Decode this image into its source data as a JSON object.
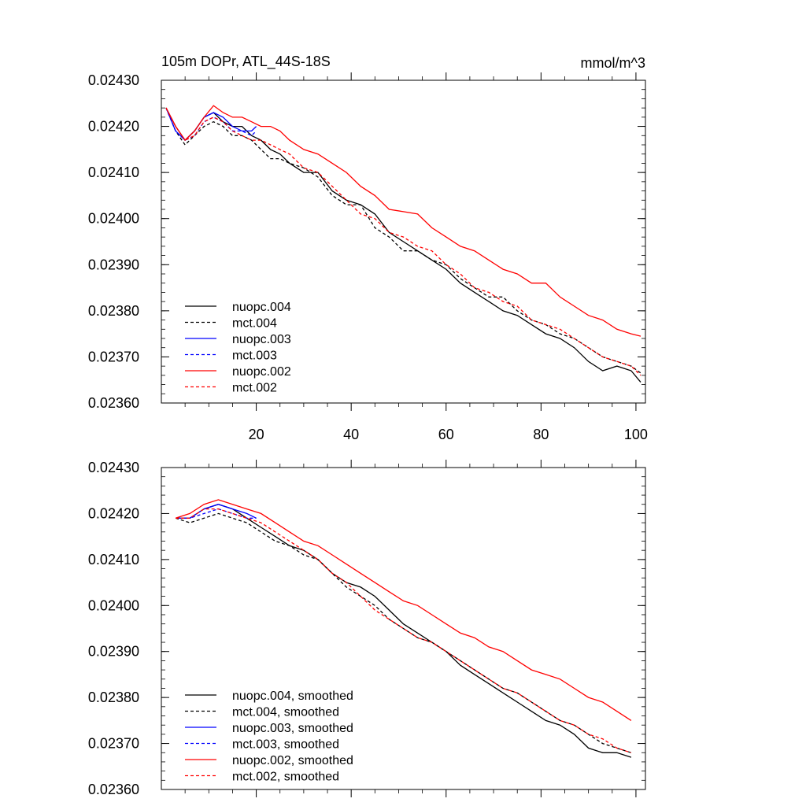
{
  "chart_data": [
    {
      "type": "line",
      "title": "105m DOPr, ATL_44S-18S",
      "units": "mmol/m^3",
      "xlim": [
        0,
        102
      ],
      "ylim": [
        0.0236,
        0.0243
      ],
      "yticks": [
        "0.02430",
        "0.02420",
        "0.02410",
        "0.02400",
        "0.02390",
        "0.02380",
        "0.02370",
        "0.02360"
      ],
      "xticks": [
        "20",
        "40",
        "60",
        "80",
        "100"
      ],
      "legend_position": "bottom-left",
      "series": [
        {
          "name": "nuopc.004",
          "color": "#000000",
          "dash": false,
          "x": [
            1,
            3,
            5,
            7,
            9,
            11,
            13,
            15,
            17,
            19,
            21,
            23,
            25,
            27,
            30,
            33,
            36,
            39,
            42,
            45,
            48,
            51,
            54,
            57,
            60,
            63,
            66,
            69,
            72,
            75,
            78,
            81,
            84,
            87,
            90,
            93,
            96,
            99,
            101
          ],
          "y": [
            0.02424,
            0.0242,
            0.02417,
            0.02419,
            0.02422,
            0.02423,
            0.02421,
            0.0242,
            0.0242,
            0.02418,
            0.02417,
            0.02415,
            0.02414,
            0.02412,
            0.0241,
            0.0241,
            0.02406,
            0.02404,
            0.02403,
            0.02401,
            0.02397,
            0.02395,
            0.02393,
            0.02391,
            0.02389,
            0.02386,
            0.02384,
            0.02382,
            0.0238,
            0.02379,
            0.02377,
            0.02375,
            0.02374,
            0.02372,
            0.02369,
            0.02367,
            0.02368,
            0.02367,
            0.023645
          ]
        },
        {
          "name": "mct.004",
          "color": "#000000",
          "dash": true,
          "x": [
            1,
            3,
            5,
            7,
            9,
            11,
            13,
            15,
            17,
            19,
            21,
            23,
            25,
            27,
            30,
            33,
            36,
            39,
            42,
            45,
            48,
            51,
            54,
            57,
            60,
            63,
            66,
            69,
            72,
            75,
            78,
            81,
            84,
            87,
            90,
            93,
            96,
            99,
            101
          ],
          "y": [
            0.02424,
            0.02419,
            0.02416,
            0.02418,
            0.0242,
            0.02421,
            0.0242,
            0.02418,
            0.02418,
            0.02417,
            0.02415,
            0.02413,
            0.02413,
            0.02412,
            0.02411,
            0.02409,
            0.02405,
            0.02403,
            0.02403,
            0.02398,
            0.02396,
            0.02393,
            0.02393,
            0.02391,
            0.0239,
            0.02387,
            0.02385,
            0.02383,
            0.02383,
            0.0238,
            0.02378,
            0.02377,
            0.02375,
            0.02374,
            0.02372,
            0.0237,
            0.02369,
            0.02368,
            0.023665
          ]
        },
        {
          "name": "nuopc.003",
          "color": "#0000ff",
          "dash": false,
          "x": [
            1,
            3,
            5,
            7,
            9,
            11,
            13,
            15,
            17,
            19,
            20
          ],
          "y": [
            0.02424,
            0.02419,
            0.02417,
            0.02419,
            0.02422,
            0.02423,
            0.02422,
            0.0242,
            0.02419,
            0.02419,
            0.0242
          ]
        },
        {
          "name": "mct.003",
          "color": "#0000ff",
          "dash": true,
          "x": [
            1,
            3,
            5,
            7,
            9,
            11,
            13,
            15,
            17,
            19,
            20
          ],
          "y": [
            0.02424,
            0.02419,
            0.02417,
            0.02418,
            0.02421,
            0.02422,
            0.02421,
            0.02419,
            0.02419,
            0.02418,
            0.02419
          ]
        },
        {
          "name": "nuopc.002",
          "color": "#ff0000",
          "dash": false,
          "x": [
            1,
            3,
            5,
            7,
            9,
            11,
            13,
            15,
            17,
            19,
            21,
            23,
            25,
            27,
            30,
            33,
            36,
            39,
            42,
            45,
            48,
            51,
            54,
            57,
            60,
            63,
            66,
            69,
            72,
            75,
            78,
            81,
            84,
            87,
            90,
            93,
            96,
            99,
            101
          ],
          "y": [
            0.02424,
            0.0242,
            0.02417,
            0.02419,
            0.02422,
            0.024245,
            0.02423,
            0.02422,
            0.02422,
            0.02421,
            0.0242,
            0.0242,
            0.02419,
            0.02417,
            0.02415,
            0.02414,
            0.02412,
            0.0241,
            0.02407,
            0.02405,
            0.02402,
            0.024015,
            0.02401,
            0.02398,
            0.02396,
            0.02394,
            0.02393,
            0.02391,
            0.02389,
            0.02388,
            0.02386,
            0.02386,
            0.02383,
            0.02381,
            0.02379,
            0.02378,
            0.02376,
            0.02375,
            0.023745
          ]
        },
        {
          "name": "mct.002",
          "color": "#ff0000",
          "dash": true,
          "x": [
            1,
            3,
            5,
            7,
            9,
            11,
            13,
            15,
            17,
            19,
            21,
            23,
            25,
            27,
            30,
            33,
            36,
            39,
            42,
            45,
            48,
            51,
            54,
            57,
            60,
            63,
            66,
            69,
            72,
            75,
            78,
            81,
            84,
            87,
            90,
            93,
            96,
            99,
            101
          ],
          "y": [
            0.02424,
            0.0242,
            0.02417,
            0.02418,
            0.02421,
            0.02422,
            0.02421,
            0.02419,
            0.02418,
            0.02417,
            0.02417,
            0.02416,
            0.02415,
            0.02414,
            0.02411,
            0.0241,
            0.02407,
            0.02404,
            0.02401,
            0.024,
            0.02397,
            0.02396,
            0.02394,
            0.02393,
            0.0239,
            0.02388,
            0.02385,
            0.02384,
            0.02382,
            0.02381,
            0.02378,
            0.02377,
            0.02376,
            0.02374,
            0.02372,
            0.0237,
            0.02369,
            0.02368,
            0.02366
          ]
        }
      ]
    },
    {
      "type": "line",
      "xlim": [
        0,
        102
      ],
      "ylim": [
        0.0236,
        0.0243
      ],
      "yticks": [
        "0.02430",
        "0.02420",
        "0.02410",
        "0.02400",
        "0.02390",
        "0.02380",
        "0.02370",
        "0.02360"
      ],
      "xticks": [],
      "legend_position": "bottom-left",
      "series": [
        {
          "name": "nuopc.004, smoothed",
          "color": "#000000",
          "dash": false,
          "x": [
            3,
            6,
            9,
            12,
            15,
            18,
            21,
            24,
            27,
            30,
            33,
            36,
            39,
            42,
            45,
            48,
            51,
            54,
            57,
            60,
            63,
            66,
            69,
            72,
            75,
            78,
            81,
            84,
            87,
            90,
            93,
            96,
            99
          ],
          "y": [
            0.02419,
            0.02419,
            0.02421,
            0.02422,
            0.02421,
            0.02419,
            0.02417,
            0.02415,
            0.02413,
            0.02412,
            0.0241,
            0.02407,
            0.02405,
            0.02404,
            0.02402,
            0.02399,
            0.02396,
            0.02394,
            0.02392,
            0.0239,
            0.02387,
            0.02385,
            0.02383,
            0.02381,
            0.02379,
            0.02377,
            0.02375,
            0.02374,
            0.02372,
            0.02369,
            0.02368,
            0.02368,
            0.02367
          ]
        },
        {
          "name": "mct.004, smoothed",
          "color": "#000000",
          "dash": true,
          "x": [
            3,
            6,
            9,
            12,
            15,
            18,
            21,
            24,
            27,
            30,
            33,
            36,
            39,
            42,
            45,
            48,
            51,
            54,
            57,
            60,
            63,
            66,
            69,
            72,
            75,
            78,
            81,
            84,
            87,
            90,
            93,
            96,
            99
          ],
          "y": [
            0.02419,
            0.02418,
            0.02419,
            0.0242,
            0.02419,
            0.02418,
            0.02416,
            0.02414,
            0.02413,
            0.02411,
            0.0241,
            0.02407,
            0.02404,
            0.02402,
            0.024,
            0.02397,
            0.02395,
            0.02393,
            0.02392,
            0.0239,
            0.02388,
            0.02386,
            0.02384,
            0.02382,
            0.02381,
            0.02379,
            0.02377,
            0.02375,
            0.02374,
            0.02372,
            0.0237,
            0.02369,
            0.02368
          ]
        },
        {
          "name": "nuopc.003, smoothed",
          "color": "#0000ff",
          "dash": false,
          "x": [
            3,
            6,
            9,
            12,
            15,
            18,
            20
          ],
          "y": [
            0.02419,
            0.02419,
            0.02421,
            0.02422,
            0.02421,
            0.0242,
            0.02419
          ]
        },
        {
          "name": "mct.003, smoothed",
          "color": "#0000ff",
          "dash": true,
          "x": [
            3,
            6,
            9,
            12,
            15,
            18,
            20
          ],
          "y": [
            0.02419,
            0.02419,
            0.0242,
            0.02421,
            0.0242,
            0.02419,
            0.02419
          ]
        },
        {
          "name": "nuopc.002, smoothed",
          "color": "#ff0000",
          "dash": false,
          "x": [
            3,
            6,
            9,
            12,
            15,
            18,
            21,
            24,
            27,
            30,
            33,
            36,
            39,
            42,
            45,
            48,
            51,
            54,
            57,
            60,
            63,
            66,
            69,
            72,
            75,
            78,
            81,
            84,
            87,
            90,
            93,
            96,
            99
          ],
          "y": [
            0.02419,
            0.0242,
            0.02422,
            0.02423,
            0.02422,
            0.02421,
            0.0242,
            0.02418,
            0.02416,
            0.02414,
            0.02413,
            0.02411,
            0.02409,
            0.02407,
            0.02405,
            0.02403,
            0.02401,
            0.024,
            0.02398,
            0.02396,
            0.02394,
            0.02393,
            0.02391,
            0.0239,
            0.02388,
            0.02386,
            0.02385,
            0.02384,
            0.02382,
            0.0238,
            0.02379,
            0.02377,
            0.02375
          ]
        },
        {
          "name": "mct.002, smoothed",
          "color": "#ff0000",
          "dash": true,
          "x": [
            3,
            6,
            9,
            12,
            15,
            18,
            21,
            24,
            27,
            30,
            33,
            36,
            39,
            42,
            45,
            48,
            51,
            54,
            57,
            60,
            63,
            66,
            69,
            72,
            75,
            78,
            81,
            84,
            87,
            90,
            93,
            96,
            99
          ],
          "y": [
            0.02419,
            0.02419,
            0.02421,
            0.02421,
            0.0242,
            0.02419,
            0.02418,
            0.02416,
            0.02414,
            0.02412,
            0.0241,
            0.02407,
            0.02405,
            0.02402,
            0.02399,
            0.02397,
            0.02395,
            0.02393,
            0.02392,
            0.0239,
            0.02388,
            0.02386,
            0.02384,
            0.02382,
            0.02381,
            0.02379,
            0.02377,
            0.02375,
            0.02374,
            0.02372,
            0.02371,
            0.02369,
            0.02368
          ]
        }
      ]
    }
  ]
}
